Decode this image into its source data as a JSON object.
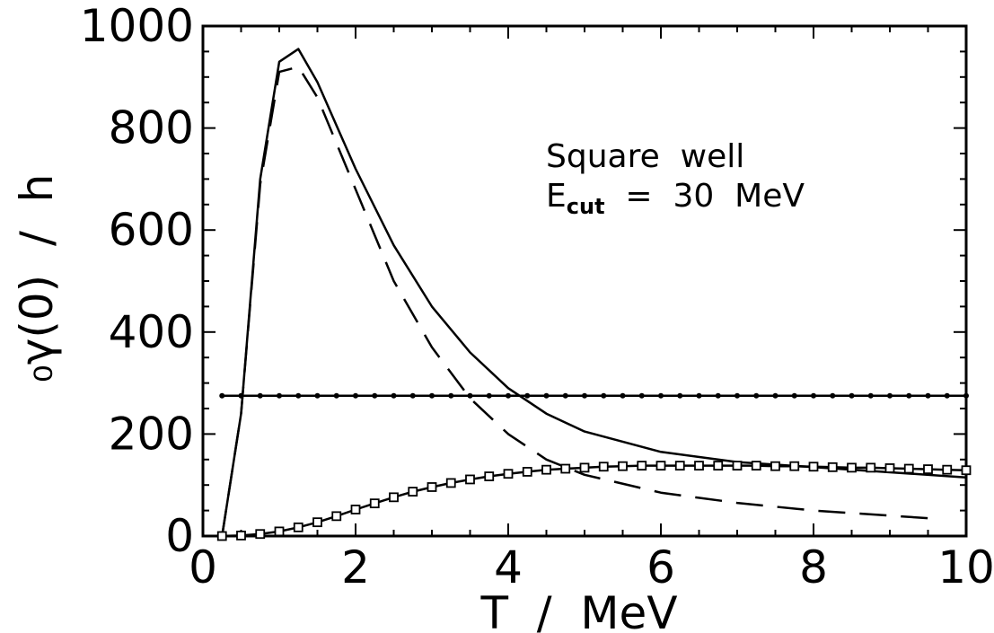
{
  "chart_data": {
    "type": "line",
    "title": "",
    "xlabel": "T  /  MeV",
    "ylabel": "₀γ(0)  /  h",
    "xlim": [
      0,
      10
    ],
    "ylim": [
      0,
      1000
    ],
    "x_ticks": [
      "0",
      "2",
      "4",
      "6",
      "8",
      "10"
    ],
    "y_ticks": [
      "0",
      "200",
      "400",
      "600",
      "800",
      "1000"
    ],
    "grid": false,
    "annotation": {
      "line1": "Square  well",
      "line2_main": "E",
      "line2_sub": "cut",
      "line2_rest": "  =  30  MeV"
    },
    "series": [
      {
        "style": "solid",
        "x": [
          0.25,
          0.5,
          0.75,
          1.0,
          1.25,
          1.5,
          2.0,
          2.5,
          3.0,
          3.5,
          4.0,
          4.5,
          5.0,
          6.0,
          7.0,
          8.0,
          9.0,
          10.0
        ],
        "values": [
          0,
          240,
          700,
          930,
          955,
          890,
          720,
          570,
          450,
          360,
          290,
          240,
          205,
          165,
          145,
          135,
          125,
          115
        ]
      },
      {
        "style": "dashed",
        "x": [
          0.25,
          0.5,
          0.75,
          1.0,
          1.25,
          1.5,
          2.0,
          2.5,
          3.0,
          3.5,
          4.0,
          4.5,
          5.0,
          6.0,
          7.0,
          8.0,
          9.0,
          9.5
        ],
        "values": [
          0,
          240,
          690,
          910,
          920,
          860,
          680,
          500,
          370,
          270,
          200,
          150,
          120,
          85,
          65,
          50,
          40,
          35
        ]
      },
      {
        "style": "solid-dots",
        "x": [
          0.25,
          10.0
        ],
        "values": [
          275,
          275
        ],
        "marker_step": 0.25
      },
      {
        "style": "solid-squares",
        "x": [
          0.25,
          0.5,
          0.75,
          1.0,
          1.25,
          1.5,
          1.75,
          2.0,
          2.25,
          2.5,
          2.75,
          3.0,
          3.25,
          3.5,
          3.75,
          4.0,
          4.25,
          4.5,
          4.75,
          5.0,
          5.25,
          5.5,
          5.75,
          6.0,
          6.25,
          6.5,
          6.75,
          7.0,
          7.25,
          7.5,
          7.75,
          8.0,
          8.25,
          8.5,
          8.75,
          9.0,
          9.25,
          9.5,
          9.75,
          10.0
        ],
        "values": [
          0,
          1,
          4,
          9,
          17,
          27,
          39,
          52,
          64,
          76,
          87,
          96,
          104,
          111,
          117,
          122,
          126,
          130,
          132,
          134,
          136,
          137,
          138,
          138,
          138,
          138,
          138,
          138,
          138,
          137,
          137,
          136,
          135,
          134,
          134,
          133,
          132,
          131,
          130,
          129
        ]
      }
    ]
  }
}
